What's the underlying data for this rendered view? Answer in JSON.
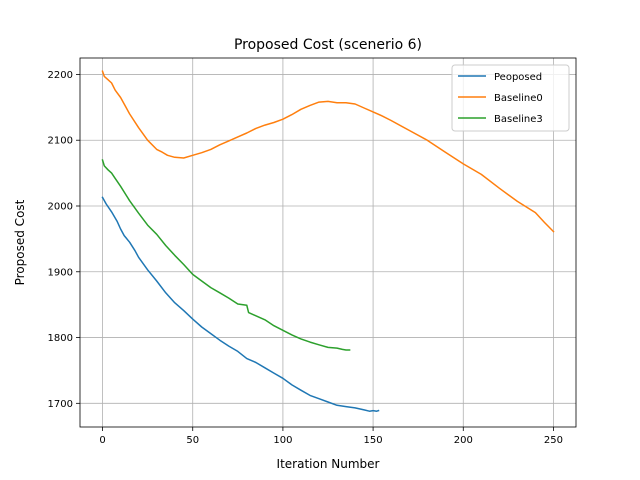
{
  "chart_data": {
    "type": "line",
    "title": "Proposed Cost (scenerio 6)",
    "xlabel": "Iteration Number",
    "ylabel": "Proposed Cost",
    "xlim": [
      -12.5,
      262.5
    ],
    "ylim": [
      1664,
      2225
    ],
    "xticks": [
      0,
      50,
      100,
      150,
      200,
      250
    ],
    "yticks": [
      1700,
      1800,
      1900,
      2000,
      2100,
      2200
    ],
    "grid": true,
    "legend_position": "top-right",
    "series": [
      {
        "name": "Peoposed",
        "color": "#1f77b4",
        "x": [
          0,
          2,
          5,
          8,
          10,
          12,
          15,
          18,
          20,
          25,
          30,
          35,
          40,
          45,
          50,
          55,
          60,
          65,
          70,
          75,
          80,
          85,
          90,
          95,
          100,
          105,
          110,
          115,
          120,
          125,
          130,
          135,
          140,
          145,
          148,
          150,
          152,
          153
        ],
        "y": [
          2013,
          2003,
          1991,
          1977,
          1965,
          1955,
          1945,
          1932,
          1922,
          1903,
          1886,
          1868,
          1853,
          1841,
          1828,
          1816,
          1806,
          1796,
          1787,
          1779,
          1768,
          1762,
          1754,
          1746,
          1738,
          1728,
          1720,
          1712,
          1707,
          1702,
          1697,
          1695,
          1693,
          1690,
          1688,
          1689,
          1688,
          1689
        ]
      },
      {
        "name": "Baseline0",
        "color": "#ff7f0e",
        "x": [
          0,
          1,
          3,
          5,
          7,
          10,
          15,
          20,
          25,
          30,
          33,
          36,
          40,
          45,
          50,
          55,
          60,
          65,
          70,
          75,
          80,
          85,
          90,
          95,
          100,
          105,
          110,
          115,
          120,
          125,
          130,
          135,
          140,
          145,
          150,
          155,
          160,
          170,
          180,
          190,
          200,
          210,
          220,
          230,
          240,
          245,
          250
        ],
        "y": [
          2205,
          2197,
          2192,
          2187,
          2176,
          2165,
          2140,
          2119,
          2100,
          2086,
          2082,
          2077,
          2074,
          2073,
          2077,
          2081,
          2086,
          2093,
          2099,
          2105,
          2111,
          2118,
          2123,
          2127,
          2132,
          2139,
          2147,
          2153,
          2158,
          2159,
          2157,
          2157,
          2155,
          2149,
          2143,
          2137,
          2130,
          2115,
          2100,
          2082,
          2064,
          2048,
          2027,
          2007,
          1990,
          1975,
          1961
        ]
      },
      {
        "name": "Baseline3",
        "color": "#2ca02c",
        "x": [
          0,
          1,
          3,
          5,
          7,
          10,
          15,
          20,
          25,
          30,
          35,
          40,
          45,
          50,
          55,
          60,
          65,
          70,
          75,
          80,
          81,
          85,
          90,
          95,
          100,
          105,
          110,
          115,
          120,
          125,
          130,
          133,
          135,
          137
        ],
        "y": [
          2070,
          2061,
          2055,
          2050,
          2042,
          2030,
          2008,
          1989,
          1971,
          1957,
          1940,
          1925,
          1911,
          1896,
          1886,
          1876,
          1868,
          1860,
          1851,
          1849,
          1838,
          1833,
          1827,
          1818,
          1811,
          1804,
          1798,
          1793,
          1789,
          1785,
          1784,
          1782,
          1781,
          1781
        ]
      }
    ]
  }
}
